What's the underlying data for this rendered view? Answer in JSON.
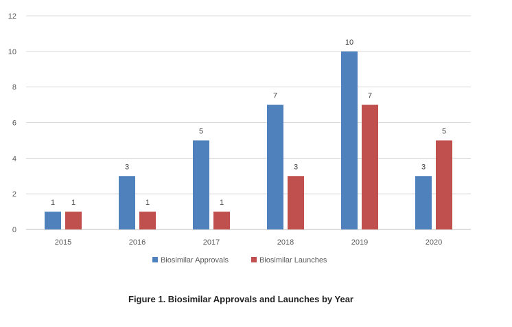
{
  "caption": "Figure 1. Biosimilar Approvals and Launches by Year",
  "chart_data": {
    "type": "bar",
    "categories": [
      "2015",
      "2016",
      "2017",
      "2018",
      "2019",
      "2020"
    ],
    "series": [
      {
        "name": "Biosimilar Approvals",
        "values": [
          1,
          3,
          5,
          7,
          10,
          3
        ],
        "color": "#4F81BD"
      },
      {
        "name": "Biosimilar Launches",
        "values": [
          1,
          1,
          1,
          3,
          7,
          5
        ],
        "color": "#C0504D"
      }
    ],
    "title": "",
    "xlabel": "",
    "ylabel": "",
    "ylim": [
      0,
      12
    ],
    "yticks": [
      "0",
      "2",
      "4",
      "6",
      "8",
      "10",
      "12"
    ],
    "grid": true,
    "legend_position": "bottom",
    "data_labels": true
  }
}
